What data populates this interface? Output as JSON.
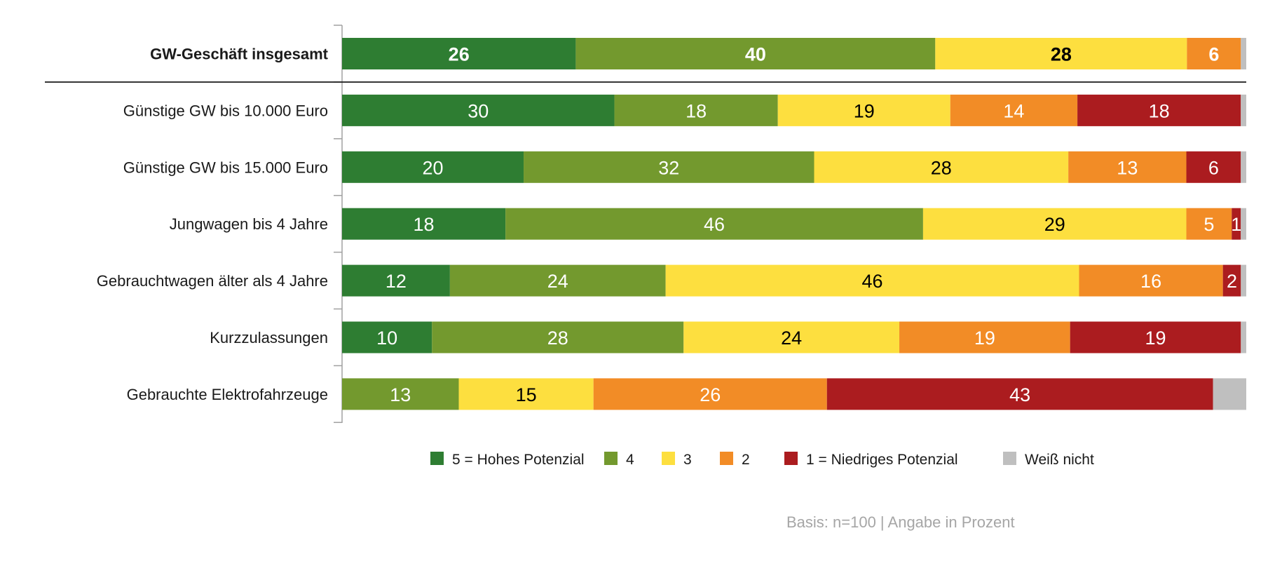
{
  "chart_data": {
    "type": "bar",
    "orientation": "horizontal",
    "stacked": true,
    "categories": [
      "GW-Geschäft insgesamt",
      "Günstige GW bis 10.000 Euro",
      "Günstige GW bis 15.000 Euro",
      "Jungwagen bis 4 Jahre",
      "Gebrauchtwagen älter als 4 Jahre",
      "Kurzzulassungen",
      "Gebrauchte Elektrofahrzeuge"
    ],
    "highlight_category": "GW-Geschäft insgesamt",
    "series": [
      {
        "name": "5 = Hohes Potenzial",
        "color": "#2e7d32",
        "values": [
          26,
          30,
          20,
          18,
          12,
          10,
          0
        ]
      },
      {
        "name": "4",
        "color": "#73992e",
        "values": [
          40,
          18,
          32,
          46,
          24,
          28,
          13
        ]
      },
      {
        "name": "3",
        "color": "#fddf3f",
        "values": [
          28,
          19,
          28,
          29,
          46,
          24,
          15
        ]
      },
      {
        "name": "2",
        "color": "#f28c26",
        "values": [
          6,
          14,
          13,
          5,
          16,
          19,
          26
        ]
      },
      {
        "name": "1 = Niedriges Potenzial",
        "color": "#ab1c1f",
        "values": [
          0,
          18,
          6,
          1,
          2,
          19,
          43
        ]
      },
      {
        "name": "Weiß nicht",
        "color": "#bfbfbf",
        "values": [
          0.6,
          0.6,
          0.6,
          0.6,
          0.6,
          0.6,
          3.7
        ]
      }
    ],
    "label_colors": {
      "5 = Hohes Potenzial": "#ffffff",
      "4": "#ffffff",
      "3": "#000000",
      "2": "#ffffff",
      "1 = Niedriges Potenzial": "#ffffff",
      "Weiß nicht": "#000000"
    },
    "xlim": [
      0,
      100
    ],
    "grid": false,
    "legend_placement": "bottom"
  },
  "footer": {
    "basis": "Basis: n=100 | Angabe in Prozent"
  }
}
